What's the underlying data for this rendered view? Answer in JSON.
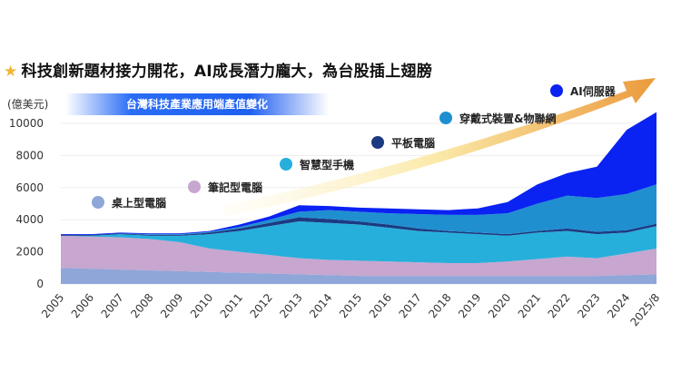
{
  "header": {
    "title": "科技創新題材接力開花，AI成長潛力龐大，為台股插上翅膀",
    "star_icon": "star-icon"
  },
  "chart_data": {
    "type": "area",
    "stacked": true,
    "title": "台灣科技產業應用端產值變化",
    "ylabel": "(億美元)",
    "xlabel": "",
    "ylim": [
      0,
      10000
    ],
    "yticks": [
      0,
      2000,
      4000,
      6000,
      8000,
      10000
    ],
    "grid": true,
    "categories": [
      "2005",
      "2006",
      "2007",
      "2008",
      "2009",
      "2010",
      "2011",
      "2012",
      "2013",
      "2014",
      "2015",
      "2016",
      "2017",
      "2018",
      "2019",
      "2020",
      "2021",
      "2022",
      "2023",
      "2024",
      "2025/8"
    ],
    "series": [
      {
        "name": "桌上型電腦",
        "color": "#8fa6d8",
        "values": [
          1000,
          950,
          900,
          850,
          800,
          750,
          700,
          650,
          600,
          550,
          500,
          500,
          500,
          500,
          500,
          500,
          500,
          500,
          500,
          550,
          600
        ]
      },
      {
        "name": "筆記型電腦",
        "color": "#c7a6cf",
        "values": [
          2000,
          2000,
          2000,
          1950,
          1800,
          1450,
          1300,
          1150,
          1000,
          950,
          950,
          900,
          850,
          800,
          800,
          900,
          1050,
          1200,
          1100,
          1350,
          1600
        ]
      },
      {
        "name": "智慧型手機",
        "color": "#27afdc",
        "values": [
          0,
          50,
          200,
          200,
          400,
          900,
          1300,
          1800,
          2300,
          2300,
          2250,
          2100,
          1950,
          1900,
          1800,
          1600,
          1650,
          1600,
          1500,
          1300,
          1400
        ]
      },
      {
        "name": "平板電腦",
        "color": "#1b3a82",
        "values": [
          50,
          50,
          50,
          50,
          50,
          100,
          150,
          200,
          250,
          250,
          200,
          200,
          150,
          100,
          100,
          100,
          100,
          150,
          150,
          150,
          150
        ]
      },
      {
        "name": "穿戴式裝置&物聯網",
        "color": "#1f8fd0",
        "values": [
          0,
          0,
          0,
          50,
          50,
          50,
          100,
          200,
          350,
          550,
          600,
          700,
          900,
          1000,
          1100,
          1300,
          1700,
          2050,
          2100,
          2250,
          2450
        ]
      },
      {
        "name": "AI伺服器",
        "color": "#0a22f2",
        "values": [
          50,
          50,
          50,
          50,
          50,
          50,
          150,
          200,
          400,
          250,
          250,
          300,
          300,
          300,
          400,
          700,
          1200,
          1400,
          1950,
          4000,
          4500
        ]
      }
    ]
  }
}
